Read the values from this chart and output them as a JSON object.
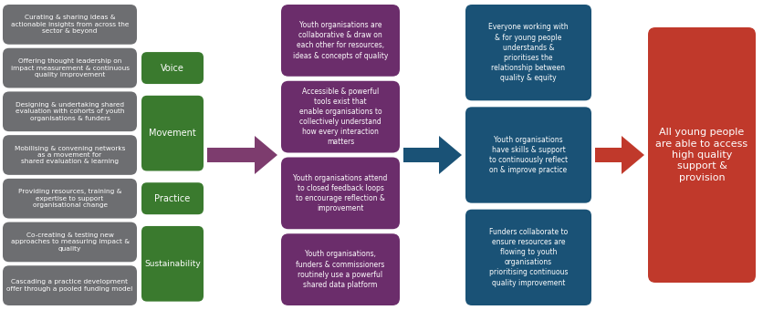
{
  "bg_color": "#ffffff",
  "col1_boxes": [
    "Curating & sharing ideas &\nactionable insights from across the\nsector & beyond",
    "Offering thought leadership on\nimpact measurement & continuous\nquality improvement",
    "Designing & undertaking shared\nevaluation with cohorts of youth\norganisations & funders",
    "Mobilising & convening networks\nas a movement for\nshared evaluation & learning",
    "Providing resources, training &\nexpertise to support\norganisational change",
    "Co-creating & testing new\napproaches to measuring impact &\nquality",
    "Cascading a practice development\noffer through a pooled funding model"
  ],
  "col1_color": "#6d6e71",
  "col2_labels": [
    "Voice",
    "Movement",
    "Practice",
    "Sustainability"
  ],
  "col2_color": "#3a7a2e",
  "col3_boxes": [
    "Youth organisations are\ncollaborative & draw on\neach other for resources,\nideas & concepts of quality",
    "Accessible & powerful\ntools exist that\nenable organisations to\ncollectively understand\nhow every interaction\nmatters",
    "Youth organisations attend\nto closed feedback loops\nto encourage reflection &\nimprovement",
    "Youth organisations,\nfunders & commissioners\nroutinely use a powerful\nshared data platform"
  ],
  "col3_color": "#6b2d6b",
  "col4_boxes": [
    "Everyone working with\n& for young people\nunderstands &\nprioritises the\nrelationship between\nquality & equity",
    "Youth organisations\nhave skills & support\nto continuously reflect\non & improve practice",
    "Funders collaborate to\nensure resources are\nflowing to youth\norganisations\nprioritising continuous\nquality improvement"
  ],
  "col4_color": "#1a5276",
  "col5_text": "All young people\nare able to access\nhigh quality\nsupport &\nprovision",
  "col5_color": "#c0392b",
  "arrow1_color": "#7d3c6e",
  "arrow2_color": "#1a5276",
  "arrow3_color": "#c0392b"
}
